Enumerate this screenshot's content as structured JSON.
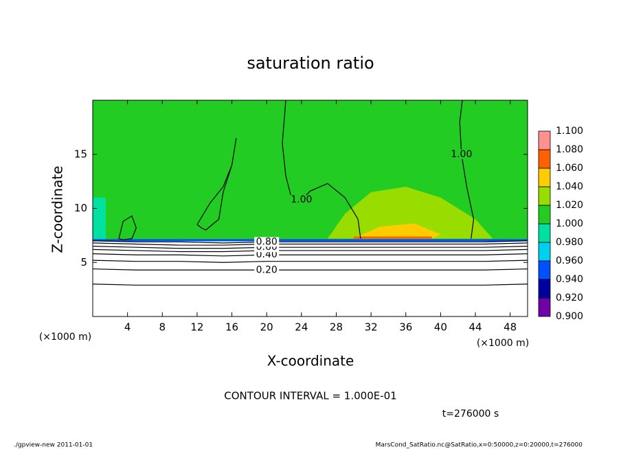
{
  "chart_data": {
    "type": "contour",
    "title": "saturation ratio",
    "x_label": "X-coordinate",
    "y_label": "Z-coordinate",
    "x_unit": "(×1000 m)",
    "xlim": [
      0,
      50
    ],
    "ylim": [
      0,
      20
    ],
    "xticks": [
      4,
      8,
      12,
      16,
      20,
      24,
      28,
      32,
      36,
      40,
      44,
      48
    ],
    "yticks": [
      5,
      10,
      15
    ],
    "colorbar": {
      "levels": [
        {
          "value": 0.9,
          "label": "0.900"
        },
        {
          "value": 0.92,
          "label": "0.920"
        },
        {
          "value": 0.94,
          "label": "0.940"
        },
        {
          "value": 0.96,
          "label": "0.960"
        },
        {
          "value": 0.98,
          "label": "0.980"
        },
        {
          "value": 1.0,
          "label": "1.000"
        },
        {
          "value": 1.02,
          "label": "1.020"
        },
        {
          "value": 1.04,
          "label": "1.040"
        },
        {
          "value": 1.06,
          "label": "1.060"
        },
        {
          "value": 1.08,
          "label": "1.080"
        },
        {
          "value": 1.1,
          "label": "1.100"
        }
      ],
      "colors": [
        "#7000a8",
        "#0000a0",
        "#0050ff",
        "#00d0f0",
        "#00e0a0",
        "#22cc22",
        "#99dd00",
        "#ffcc00",
        "#ff6000",
        "#ff9090"
      ]
    },
    "regions": [
      {
        "value": 1.01,
        "x": [
          0,
          50,
          50,
          0
        ],
        "z": [
          7.1,
          7.1,
          20,
          20
        ]
      },
      {
        "value": 0.99,
        "x": [
          0,
          1.5,
          1.5,
          0
        ],
        "z": [
          7.1,
          7.1,
          11,
          11
        ]
      },
      {
        "value": 1.03,
        "x": [
          27,
          29,
          32,
          36,
          40,
          44,
          46
        ],
        "z": [
          7.2,
          9.5,
          11.5,
          12,
          11,
          9,
          7.2
        ]
      },
      {
        "value": 1.05,
        "x": [
          30,
          33,
          37,
          40,
          39,
          31
        ],
        "z": [
          7.2,
          8.3,
          8.6,
          7.6,
          7.2,
          7.2
        ]
      },
      {
        "value": 1.07,
        "x": [
          30,
          39,
          39,
          30
        ],
        "z": [
          7.2,
          7.2,
          7.4,
          7.4
        ]
      },
      {
        "value": 0.95,
        "x": [
          0,
          50,
          50,
          0
        ],
        "z": [
          6.95,
          6.95,
          7.15,
          7.15
        ]
      }
    ],
    "contours": [
      {
        "level": 0.1,
        "x": [
          0,
          5,
          10,
          15,
          20,
          25,
          30,
          35,
          40,
          45,
          50
        ],
        "z": [
          3.0,
          2.9,
          2.9,
          2.9,
          2.9,
          2.9,
          2.9,
          2.9,
          2.9,
          2.9,
          3.0
        ]
      },
      {
        "level": 0.2,
        "label": "0.20",
        "x": [
          0,
          5,
          10,
          15,
          20,
          25,
          30,
          35,
          40,
          45,
          50
        ],
        "z": [
          4.4,
          4.3,
          4.3,
          4.3,
          4.3,
          4.3,
          4.3,
          4.3,
          4.3,
          4.3,
          4.4
        ]
      },
      {
        "level": 0.3,
        "x": [
          0,
          5,
          10,
          15,
          20,
          25,
          30,
          35,
          40,
          45,
          50
        ],
        "z": [
          5.2,
          5.1,
          5.1,
          5.0,
          5.1,
          5.1,
          5.1,
          5.1,
          5.1,
          5.1,
          5.2
        ]
      },
      {
        "level": 0.4,
        "label": "0.40",
        "x": [
          0,
          5,
          10,
          15,
          20,
          25,
          30,
          35,
          40,
          45,
          50
        ],
        "z": [
          5.8,
          5.7,
          5.7,
          5.6,
          5.7,
          5.7,
          5.7,
          5.7,
          5.7,
          5.7,
          5.8
        ]
      },
      {
        "level": 0.5,
        "x": [
          0,
          5,
          10,
          15,
          20,
          25,
          30,
          35,
          40,
          45,
          50
        ],
        "z": [
          6.2,
          6.1,
          6.0,
          6.0,
          6.1,
          6.1,
          6.1,
          6.1,
          6.1,
          6.1,
          6.2
        ]
      },
      {
        "level": 0.6,
        "label": "0.60",
        "x": [
          0,
          5,
          10,
          15,
          20,
          25,
          30,
          35,
          40,
          45,
          50
        ],
        "z": [
          6.5,
          6.4,
          6.3,
          6.3,
          6.4,
          6.4,
          6.4,
          6.4,
          6.4,
          6.4,
          6.5
        ]
      },
      {
        "level": 0.7,
        "x": [
          0,
          5,
          10,
          15,
          20,
          25,
          30,
          35,
          40,
          45,
          50
        ],
        "z": [
          6.8,
          6.7,
          6.6,
          6.6,
          6.7,
          6.7,
          6.7,
          6.7,
          6.7,
          6.7,
          6.8
        ]
      },
      {
        "level": 0.8,
        "label": "0.80",
        "x": [
          0,
          5,
          10,
          15,
          20,
          25,
          30,
          35,
          40,
          45,
          50
        ],
        "z": [
          7.0,
          6.9,
          6.9,
          6.8,
          6.9,
          6.9,
          6.9,
          6.9,
          6.9,
          6.9,
          7.0
        ]
      },
      {
        "level": 1.0,
        "x": [
          12,
          13.5,
          15,
          16,
          16.5,
          16,
          15,
          14.5,
          13,
          12.5,
          12
        ],
        "z": [
          8.5,
          10.5,
          12,
          14,
          16.5,
          14,
          11.5,
          9,
          8,
          8.2,
          8.5
        ]
      },
      {
        "level": 1.0,
        "x": [
          3,
          3.5,
          4.5,
          5,
          4.5,
          3.5,
          3
        ],
        "z": [
          7.2,
          8.8,
          9.3,
          8.2,
          7.2,
          7.1,
          7.2
        ]
      },
      {
        "level": 1.0,
        "label": "1.00",
        "x": [
          22.2,
          21.8,
          22.2,
          23,
          24,
          25,
          27,
          29,
          30.5,
          30.8
        ],
        "z": [
          20,
          16,
          13,
          10.5,
          10.8,
          11.6,
          12.3,
          11,
          9,
          7.2
        ]
      },
      {
        "level": 1.0,
        "label": "1.00",
        "x": [
          42.5,
          42.2,
          42.4,
          43,
          43.8,
          43.5
        ],
        "z": [
          20,
          18,
          15,
          12,
          9,
          7.2
        ]
      }
    ],
    "annotations": {
      "contour_interval": "CONTOUR INTERVAL = 1.000E-01",
      "time": "t=276000 s",
      "footer_left": "./gpview-new  2011-01-01",
      "footer_right": "MarsCond_SatRatio.nc@SatRatio,x=0:50000,z=0:20000,t=276000"
    }
  }
}
